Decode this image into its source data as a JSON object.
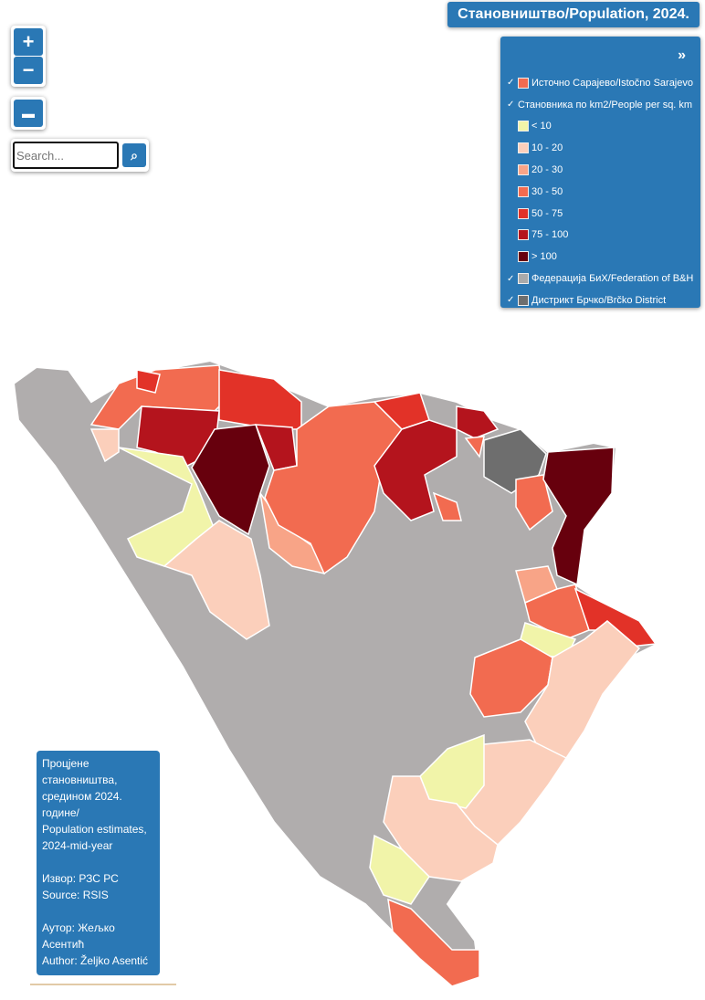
{
  "title": "Становништво/Population, 2024.",
  "zoom": {
    "in": "+",
    "out": "−"
  },
  "search": {
    "placeholder": "Search..."
  },
  "legend": {
    "toggle": "»",
    "items": [
      {
        "label": "Источно Сарајево/Istočno Sarajevo",
        "color": "#f26b50",
        "checked": true
      },
      {
        "label": "Становника по km2/People per sq. km",
        "checked": true
      },
      {
        "label": "< 10",
        "color": "#f1f4a9",
        "checked": false
      },
      {
        "label": "10 - 20",
        "color": "#fbcfbb",
        "checked": false
      },
      {
        "label": "20 - 30",
        "color": "#f8a487",
        "checked": false
      },
      {
        "label": "30 - 50",
        "color": "#f26b50",
        "checked": false
      },
      {
        "label": "50 - 75",
        "color": "#e23228",
        "checked": false
      },
      {
        "label": "75 - 100",
        "color": "#b4141d",
        "checked": false
      },
      {
        "label": "> 100",
        "color": "#67000d",
        "checked": false
      },
      {
        "label": "Федерација БиХ/Federation of B&H",
        "color": "#aaaaaa",
        "checked": true
      },
      {
        "label": "Дистрикт Брчко/Brčko District",
        "color": "#6e6e6e",
        "checked": true
      }
    ]
  },
  "info": {
    "paragraphs": [
      [
        "Процјене",
        "становништва,",
        "средином 2024.",
        "године/",
        "Population estimates,",
        "2024-mid-year"
      ],
      [
        "Извор: РЗС РС",
        "Source: RSIS"
      ],
      [
        "Аутор: Жељко",
        "Асентић",
        "Author: Željko Asentić"
      ]
    ]
  }
}
